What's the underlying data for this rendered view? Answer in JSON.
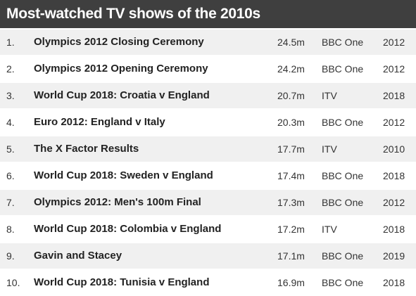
{
  "header": {
    "title": "Most-watched TV shows of the 2010s"
  },
  "table": {
    "rows": [
      [
        "1.",
        "Olympics 2012 Closing Ceremony",
        "24.5m",
        "BBC One",
        "2012"
      ],
      [
        "2.",
        "Olympics 2012 Opening Ceremony",
        "24.2m",
        "BBC One",
        "2012"
      ],
      [
        "3.",
        "World Cup 2018: Croatia v England",
        "20.7m",
        "ITV",
        "2018"
      ],
      [
        "4.",
        "Euro 2012: England v Italy",
        "20.3m",
        "BBC One",
        "2012"
      ],
      [
        "5.",
        "The X Factor Results",
        "17.7m",
        "ITV",
        "2010"
      ],
      [
        "6.",
        "World Cup 2018: Sweden v England",
        "17.4m",
        "BBC One",
        "2018"
      ],
      [
        "7.",
        "Olympics 2012: Men's 100m Final",
        "17.3m",
        "BBC One",
        "2012"
      ],
      [
        "8.",
        "World Cup 2018: Colombia v England",
        "17.2m",
        "ITV",
        "2018"
      ],
      [
        "9.",
        "Gavin and Stacey",
        "17.1m",
        "BBC One",
        "2019"
      ],
      [
        "10.",
        "World Cup 2018: Tunisia v England",
        "16.9m",
        "BBC One",
        "2018"
      ]
    ]
  }
}
